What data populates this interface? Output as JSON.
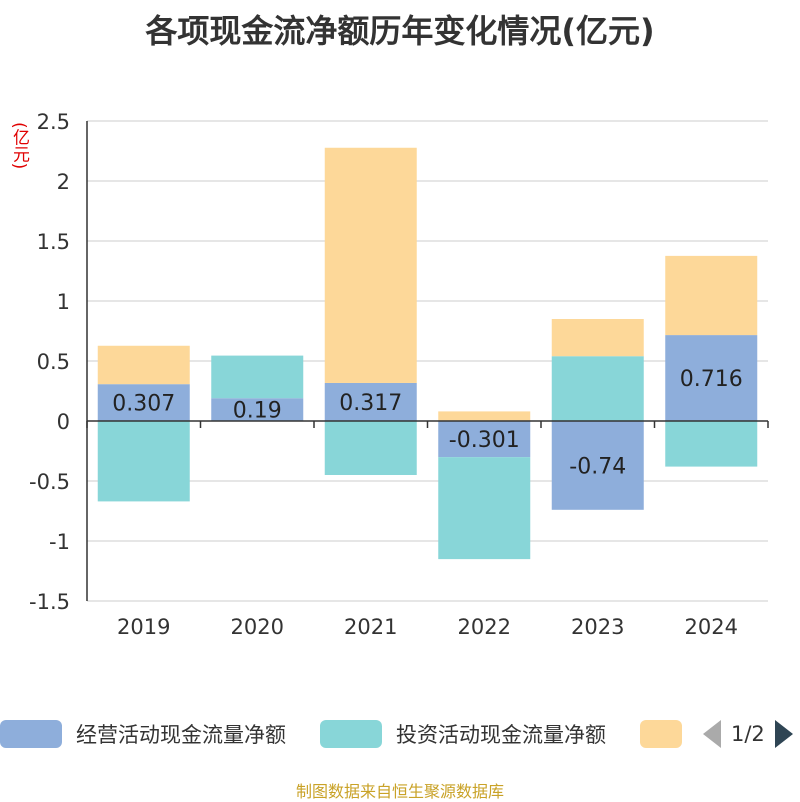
{
  "chart_data": {
    "type": "bar",
    "stacked": true,
    "title": "各项现金流净额历年变化情况(亿元)",
    "unit_label": "(亿元)",
    "categories": [
      "2019",
      "2020",
      "2021",
      "2022",
      "2023",
      "2024"
    ],
    "ylim": [
      -1.5,
      2.5
    ],
    "yticks": [
      "2.5",
      "2",
      "1.5",
      "1",
      "0.5",
      "0",
      "-0.5",
      "-1",
      "-1.5"
    ],
    "grid": true,
    "series": [
      {
        "name": "经营活动现金流量净额",
        "color": "#8eaedb",
        "values": [
          0.307,
          0.19,
          0.317,
          -0.301,
          -0.74,
          0.716
        ],
        "labels": [
          "0.307",
          "0.19",
          "0.317",
          "-0.301",
          "-0.74",
          "0.716"
        ]
      },
      {
        "name": "投资活动现金流量净额",
        "color": "#88d6d8",
        "values": [
          -0.67,
          0.355,
          -0.45,
          -0.85,
          0.54,
          -0.38
        ]
      },
      {
        "name": "",
        "color": "#fdd899",
        "values": [
          0.32,
          0.0,
          1.96,
          0.08,
          0.31,
          0.66
        ]
      }
    ]
  },
  "legend": {
    "items": [
      {
        "label": "经营活动现金流量净额",
        "color": "#8eaedb"
      },
      {
        "label": "投资活动现金流量净额",
        "color": "#88d6d8"
      },
      {
        "label": "",
        "color": "#fdd899"
      }
    ],
    "page_text": "1/2"
  },
  "source": "制图数据来自恒生聚源数据库"
}
